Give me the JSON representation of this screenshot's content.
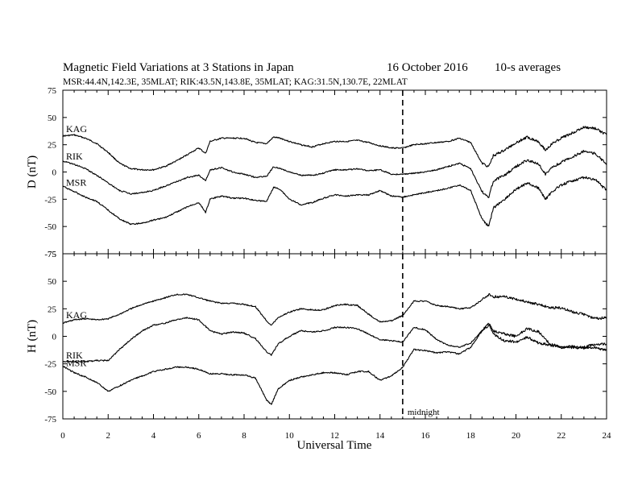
{
  "chart_data": {
    "type": "line",
    "title": "Magnetic Field Variations at 3 Stations in Japan",
    "date": "16 October 2016",
    "note": "10-s averages",
    "subtitle": "MSR:44.4N,142.3E, 35MLAT;  RIK:43.5N,143.8E, 35MLAT;  KAG:31.5N,130.7E, 22MLAT",
    "xlabel": "Universal Time",
    "xlim": [
      0,
      24
    ],
    "x_ticks": [
      "0",
      "2",
      "4",
      "6",
      "8",
      "10",
      "12",
      "14",
      "16",
      "18",
      "20",
      "22",
      "24"
    ],
    "grid": false,
    "vline": {
      "x": 15,
      "style": "dashed",
      "label": "midnight"
    },
    "panels": [
      {
        "ylabel": "D (nT)",
        "ylim": [
          -75,
          75
        ],
        "y_ticks": [
          "75",
          "50",
          "25",
          "0",
          "-25",
          "-50",
          "-75"
        ],
        "series": [
          {
            "name": "KAG",
            "x": [
              0,
              0.5,
              1,
              1.5,
              2,
              2.5,
              3,
              3.5,
              4,
              4.5,
              5,
              5.5,
              6,
              6.3,
              6.5,
              7,
              7.5,
              8,
              8.5,
              9,
              9.3,
              9.6,
              10,
              10.5,
              11,
              11.5,
              12,
              12.5,
              13,
              13.5,
              14,
              14.5,
              15,
              15.5,
              16,
              16.5,
              17,
              17.5,
              18,
              18.5,
              18.8,
              19,
              19.5,
              20,
              20.5,
              21,
              21.3,
              21.6,
              22,
              22.5,
              23,
              23.5,
              24
            ],
            "values": [
              33,
              34,
              31,
              26,
              18,
              8,
              3,
              2,
              2,
              5,
              10,
              16,
              22,
              17,
              28,
              31,
              31,
              31,
              27,
              26,
              32,
              31,
              28,
              25,
              23,
              26,
              28,
              28,
              29,
              27,
              24,
              22,
              22,
              25,
              26,
              27,
              28,
              31,
              27,
              8,
              5,
              15,
              20,
              27,
              32,
              28,
              20,
              26,
              31,
              36,
              41,
              40,
              34
            ]
          },
          {
            "name": "RIK",
            "x": [
              0,
              0.5,
              1,
              1.5,
              2,
              2.5,
              3,
              3.5,
              4,
              4.5,
              5,
              5.5,
              6,
              6.3,
              6.5,
              7,
              7.5,
              8,
              8.5,
              9,
              9.3,
              9.6,
              10,
              10.5,
              11,
              11.5,
              12,
              12.5,
              13,
              13.5,
              14,
              14.5,
              15,
              15.5,
              16,
              16.5,
              17,
              17.5,
              18,
              18.5,
              18.8,
              19,
              19.5,
              20,
              20.5,
              21,
              21.3,
              21.6,
              22,
              22.5,
              23,
              23.5,
              24
            ],
            "values": [
              10,
              7,
              3,
              -3,
              -10,
              -17,
              -20,
              -19,
              -17,
              -13,
              -9,
              -5,
              -3,
              -8,
              2,
              4,
              0,
              -2,
              -5,
              -4,
              5,
              3,
              0,
              -3,
              -3,
              -1,
              2,
              2,
              3,
              1,
              2,
              -2,
              -2,
              -1,
              0,
              2,
              5,
              8,
              3,
              -18,
              -23,
              -8,
              -3,
              5,
              11,
              7,
              -2,
              4,
              9,
              14,
              19,
              17,
              7
            ]
          },
          {
            "name": "MSR",
            "x": [
              0,
              0.5,
              1,
              1.5,
              2,
              2.5,
              3,
              3.5,
              4,
              4.5,
              5,
              5.5,
              6,
              6.3,
              6.5,
              7,
              7.5,
              8,
              8.5,
              9,
              9.3,
              9.6,
              10,
              10.5,
              11,
              11.5,
              12,
              12.5,
              13,
              13.5,
              14,
              14.5,
              15,
              15.5,
              16,
              16.5,
              17,
              17.5,
              18,
              18.5,
              18.8,
              19,
              19.5,
              20,
              20.5,
              21,
              21.3,
              21.6,
              22,
              22.5,
              23,
              23.5,
              24
            ],
            "values": [
              -13,
              -18,
              -23,
              -27,
              -35,
              -43,
              -48,
              -47,
              -44,
              -42,
              -37,
              -32,
              -28,
              -37,
              -25,
              -22,
              -24,
              -24,
              -26,
              -27,
              -14,
              -16,
              -25,
              -30,
              -28,
              -24,
              -21,
              -22,
              -21,
              -21,
              -17,
              -22,
              -23,
              -21,
              -19,
              -17,
              -15,
              -12,
              -17,
              -43,
              -50,
              -33,
              -25,
              -16,
              -10,
              -15,
              -25,
              -18,
              -12,
              -8,
              -5,
              -7,
              -17
            ]
          }
        ]
      },
      {
        "ylabel": "H (nT)",
        "ylim": [
          -75,
          75
        ],
        "y_ticks": [
          "75",
          "50",
          "25",
          "0",
          "-25",
          "-50",
          "-75"
        ],
        "series": [
          {
            "name": "KAG",
            "x": [
              0,
              0.5,
              1,
              1.5,
              2,
              2.5,
              3,
              3.5,
              4,
              4.5,
              5,
              5.5,
              6,
              6.5,
              7,
              7.5,
              8,
              8.5,
              9,
              9.2,
              9.5,
              10,
              10.5,
              11,
              11.5,
              12,
              12.5,
              13,
              13.5,
              14,
              14.5,
              15,
              15.5,
              16,
              16.5,
              17,
              17.5,
              18,
              18.5,
              18.8,
              19,
              19.5,
              20,
              20.5,
              21,
              21.5,
              22,
              22.5,
              23,
              23.5,
              24
            ],
            "values": [
              12,
              15,
              16,
              15,
              16,
              20,
              25,
              29,
              32,
              35,
              38,
              38,
              35,
              32,
              30,
              30,
              29,
              27,
              14,
              10,
              17,
              22,
              25,
              24,
              24,
              28,
              29,
              28,
              20,
              13,
              14,
              19,
              32,
              32,
              28,
              27,
              25,
              26,
              33,
              38,
              36,
              36,
              34,
              31,
              29,
              26,
              26,
              22,
              20,
              16,
              17
            ]
          },
          {
            "name": "RIK",
            "x": [
              0,
              0.5,
              1,
              1.5,
              2,
              2.5,
              3,
              3.5,
              4,
              4.5,
              5,
              5.5,
              6,
              6.5,
              7,
              7.5,
              8,
              8.5,
              9,
              9.2,
              9.5,
              10,
              10.5,
              11,
              11.5,
              12,
              12.5,
              13,
              13.5,
              14,
              14.5,
              15,
              15.5,
              16,
              16.5,
              17,
              17.5,
              18,
              18.5,
              18.8,
              19,
              19.5,
              20,
              20.5,
              21,
              21.5,
              22,
              22.5,
              23,
              23.5,
              24
            ],
            "values": [
              -23,
              -23,
              -23,
              -22,
              -22,
              -12,
              -3,
              5,
              10,
              12,
              15,
              17,
              15,
              5,
              2,
              4,
              3,
              -2,
              -14,
              -17,
              -7,
              0,
              5,
              4,
              5,
              8,
              8,
              7,
              2,
              -3,
              -4,
              -5,
              8,
              6,
              -3,
              -8,
              -10,
              -6,
              5,
              12,
              5,
              2,
              0,
              7,
              4,
              -7,
              -10,
              -10,
              -11,
              -10,
              -13
            ]
          },
          {
            "name": "MSR",
            "x": [
              0,
              0.5,
              1,
              1.5,
              2,
              2.5,
              3,
              3.5,
              4,
              4.5,
              5,
              5.5,
              6,
              6.5,
              7,
              7.5,
              8,
              8.5,
              9,
              9.2,
              9.5,
              10,
              10.5,
              11,
              11.5,
              12,
              12.5,
              13,
              13.5,
              14,
              14.5,
              15,
              15.5,
              16,
              16.5,
              17,
              17.5,
              18,
              18.5,
              18.8,
              19,
              19.5,
              20,
              20.5,
              21,
              21.5,
              22,
              22.5,
              23,
              23.5,
              24
            ],
            "values": [
              -27,
              -33,
              -37,
              -42,
              -50,
              -45,
              -40,
              -36,
              -32,
              -30,
              -28,
              -28,
              -30,
              -34,
              -34,
              -35,
              -35,
              -38,
              -58,
              -62,
              -48,
              -40,
              -37,
              -35,
              -33,
              -33,
              -35,
              -32,
              -32,
              -40,
              -36,
              -28,
              -12,
              -13,
              -15,
              -14,
              -16,
              -10,
              5,
              10,
              2,
              -4,
              -5,
              -1,
              -6,
              -8,
              -10,
              -9,
              -10,
              -7,
              -7
            ]
          }
        ]
      }
    ]
  }
}
